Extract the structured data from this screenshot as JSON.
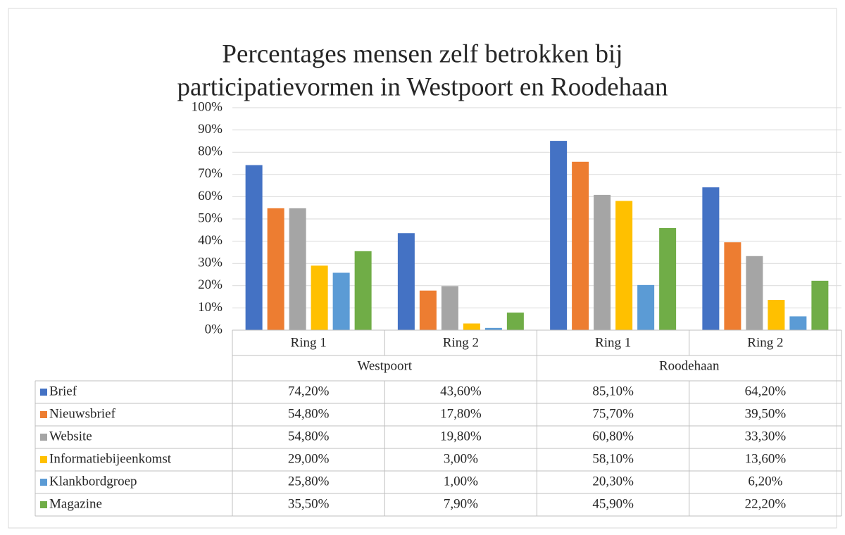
{
  "chart_data": {
    "type": "bar",
    "title": [
      "Percentages mensen zelf betrokken bij",
      "participatievormen in Westpoort en Roodehaan"
    ],
    "categories": [
      "Ring 1",
      "Ring 2",
      "Ring 1",
      "Ring 2"
    ],
    "category_groups": [
      "Westpoort",
      "Roodehaan"
    ],
    "series": [
      {
        "name": "Brief",
        "color": "#4472c4",
        "values": [
          74.2,
          43.6,
          85.1,
          64.2
        ],
        "value_labels": [
          "74,20%",
          "43,60%",
          "85,10%",
          "64,20%"
        ]
      },
      {
        "name": "Nieuwsbrief",
        "color": "#ed7d31",
        "values": [
          54.8,
          17.8,
          75.7,
          39.5
        ],
        "value_labels": [
          "54,80%",
          "17,80%",
          "75,70%",
          "39,50%"
        ]
      },
      {
        "name": "Website",
        "color": "#a5a5a5",
        "values": [
          54.8,
          19.8,
          60.8,
          33.3
        ],
        "value_labels": [
          "54,80%",
          "19,80%",
          "60,80%",
          "33,30%"
        ]
      },
      {
        "name": "Informatiebijeenkomst",
        "color": "#ffc000",
        "values": [
          29.0,
          3.0,
          58.1,
          13.6
        ],
        "value_labels": [
          "29,00%",
          "3,00%",
          "58,10%",
          "13,60%"
        ]
      },
      {
        "name": "Klankbordgroep",
        "color": "#5b9bd5",
        "values": [
          25.8,
          1.0,
          20.3,
          6.2
        ],
        "value_labels": [
          "25,80%",
          "1,00%",
          "20,30%",
          "6,20%"
        ]
      },
      {
        "name": "Magazine",
        "color": "#70ad47",
        "values": [
          35.5,
          7.9,
          45.9,
          22.2
        ],
        "value_labels": [
          "35,50%",
          "7,90%",
          "45,90%",
          "22,20%"
        ]
      }
    ],
    "ylim": [
      0,
      100
    ],
    "yticks": [
      {
        "value": 0,
        "label": "0%"
      },
      {
        "value": 10,
        "label": "10%"
      },
      {
        "value": 20,
        "label": "20%"
      },
      {
        "value": 30,
        "label": "30%"
      },
      {
        "value": 40,
        "label": "40%"
      },
      {
        "value": 50,
        "label": "50%"
      },
      {
        "value": 60,
        "label": "60%"
      },
      {
        "value": 70,
        "label": "70%"
      },
      {
        "value": 80,
        "label": "80%"
      },
      {
        "value": 90,
        "label": "90%"
      },
      {
        "value": 100,
        "label": "100%"
      }
    ],
    "grid": true,
    "data_table": true
  }
}
